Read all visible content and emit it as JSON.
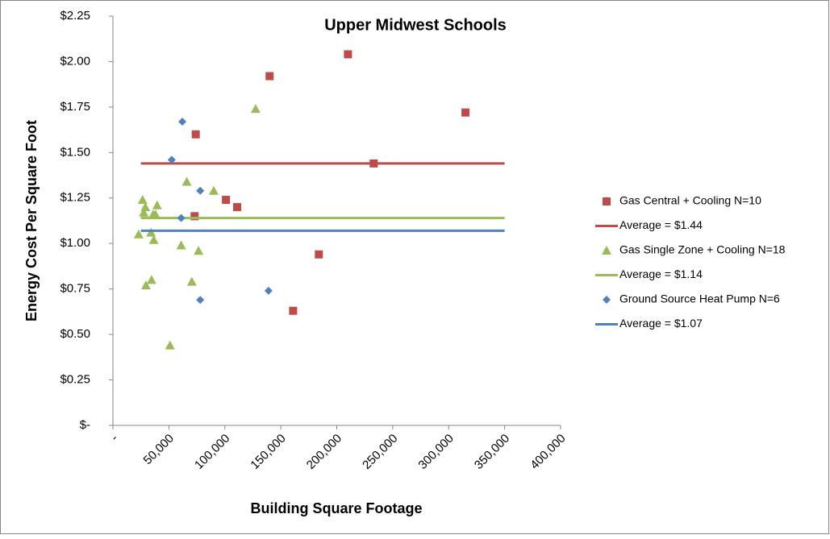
{
  "chart_data": {
    "type": "scatter",
    "title": "Upper Midwest Schools",
    "x_label": "Building Square Footage",
    "y_label": "Energy Cost Per Square Foot",
    "xlim": [
      0,
      400000
    ],
    "xticks": [
      {
        "value": 0,
        "label": "-"
      },
      {
        "value": 50000,
        "label": "50,000"
      },
      {
        "value": 100000,
        "label": "100,000"
      },
      {
        "value": 150000,
        "label": "150,000"
      },
      {
        "value": 200000,
        "label": "200,000"
      },
      {
        "value": 250000,
        "label": "250,000"
      },
      {
        "value": 300000,
        "label": "300,000"
      },
      {
        "value": 350000,
        "label": "350,000"
      },
      {
        "value": 400000,
        "label": "400,000"
      }
    ],
    "ylim": [
      0,
      2.25
    ],
    "yticks": [
      {
        "value": 0,
        "label": "$-"
      },
      {
        "value": 0.25,
        "label": "$0.25"
      },
      {
        "value": 0.5,
        "label": "$0.50"
      },
      {
        "value": 0.75,
        "label": "$0.75"
      },
      {
        "value": 1.0,
        "label": "$1.00"
      },
      {
        "value": 1.25,
        "label": "$1.25"
      },
      {
        "value": 1.5,
        "label": "$1.50"
      },
      {
        "value": 1.75,
        "label": "$1.75"
      },
      {
        "value": 2.0,
        "label": "$2.00"
      },
      {
        "value": 2.25,
        "label": "$2.25"
      }
    ],
    "grid": false,
    "legend": "right",
    "series": [
      {
        "name": "Gas Central + Cooling N=10",
        "color": "#be4b48",
        "marker": "square",
        "x": [
          140000,
          210000,
          315000,
          74000,
          233000,
          101000,
          111000,
          73000,
          184000,
          161000
        ],
        "values": [
          1.92,
          2.04,
          1.72,
          1.6,
          1.44,
          1.24,
          1.2,
          1.15,
          0.94,
          0.63
        ]
      },
      {
        "name": "Average = $1.44",
        "color": "#be4b48",
        "marker": "line",
        "x": [
          25000,
          350000
        ],
        "values": [
          1.44,
          1.44
        ]
      },
      {
        "name": "Gas Single Zone + Cooling N=18",
        "color": "#9bbb59",
        "marker": "triangle",
        "x": [
          127500,
          66000,
          90000,
          26500,
          29000,
          39500,
          27500,
          36000,
          38000,
          23000,
          34000,
          36500,
          61000,
          76500,
          29500,
          34500,
          70500,
          51000
        ],
        "values": [
          1.74,
          1.34,
          1.29,
          1.24,
          1.2,
          1.21,
          1.17,
          1.16,
          1.16,
          1.05,
          1.06,
          1.02,
          0.99,
          0.96,
          0.77,
          0.8,
          0.79,
          0.44
        ]
      },
      {
        "name": "Average = $1.14",
        "color": "#9bbb59",
        "marker": "line",
        "x": [
          25000,
          350000
        ],
        "values": [
          1.14,
          1.14
        ]
      },
      {
        "name": "Ground Source Heat Pump N=6",
        "color": "#4f81bd",
        "marker": "diamond",
        "x": [
          62000,
          52500,
          78000,
          61000,
          139000,
          78000
        ],
        "values": [
          1.67,
          1.46,
          1.29,
          1.14,
          0.74,
          0.69
        ]
      },
      {
        "name": "Average = $1.07",
        "color": "#4f81bd",
        "marker": "line",
        "x": [
          25000,
          350000
        ],
        "values": [
          1.07,
          1.07
        ]
      }
    ]
  }
}
